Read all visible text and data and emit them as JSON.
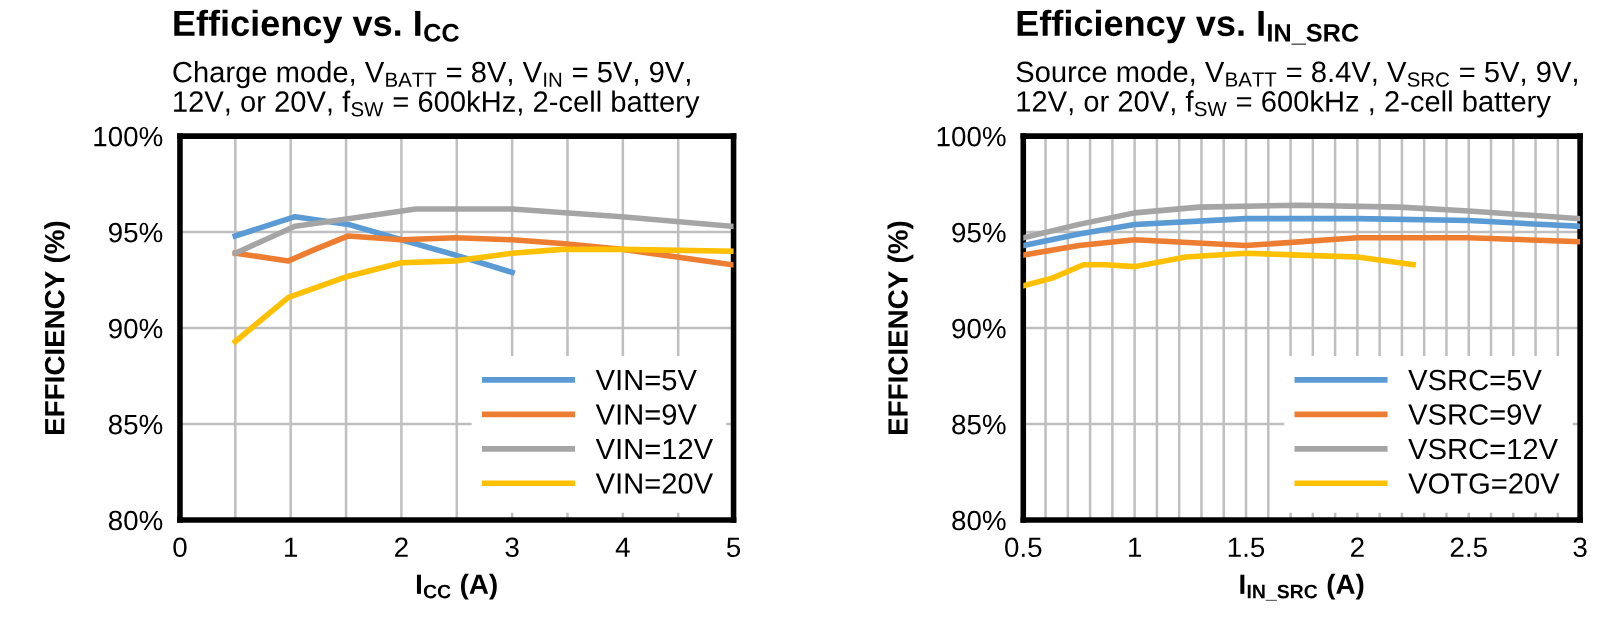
{
  "chart_data": [
    {
      "type": "line",
      "title": "Efficiency vs. I$_{CC}$",
      "subtitle": "Charge mode, V$_{BATT}$ = 8V, V$_{IN}$ = 5V, 9V,\n12V, or 20V, f$_{SW}$ = 600kHz, 2-cell battery",
      "xlabel": "I$_{CC}$ (A)",
      "ylabel": "EFFICIENCY (%)",
      "xlim": [
        0,
        5
      ],
      "xticks": [
        0,
        {
          "value": 0.5,
          "label": null
        },
        1,
        {
          "value": 1.5,
          "label": null
        },
        2,
        {
          "value": 2.5,
          "label": null
        },
        3,
        {
          "value": 3.5,
          "label": null
        },
        4,
        {
          "value": 4.5,
          "label": null
        },
        5
      ],
      "ylim": [
        80,
        100
      ],
      "yticks": [
        {
          "value": 80,
          "label": "80%"
        },
        {
          "value": 85,
          "label": "85%"
        },
        {
          "value": 90,
          "label": "90%"
        },
        {
          "value": 95,
          "label": "95%"
        },
        {
          "value": 100,
          "label": "100%"
        }
      ],
      "grid": true,
      "legend": "bottom right",
      "marker": "none",
      "line_style": "solid",
      "series": [
        {
          "name": "VIN=5V",
          "color": "#5b9bd5",
          "x": [
            0.5,
            1.04,
            1.52,
            2.0,
            2.49,
            3.0
          ],
          "values": [
            94.8,
            95.8,
            95.4,
            94.6,
            93.8,
            92.9
          ]
        },
        {
          "name": "VIN=9V",
          "color": "#ed7d31",
          "x": [
            0.5,
            0.98,
            1.22,
            1.52,
            2.0,
            2.49,
            3.0,
            3.45,
            3.99,
            4.99
          ],
          "values": [
            93.9,
            93.5,
            94.1,
            94.8,
            94.6,
            94.7,
            94.6,
            94.4,
            94.1,
            93.3
          ]
        },
        {
          "name": "VIN=12V",
          "color": "#a5a5a5",
          "x": [
            0.5,
            1.04,
            1.52,
            2.13,
            2.49,
            3.0,
            3.99,
            4.99
          ],
          "values": [
            93.9,
            95.3,
            95.7,
            96.2,
            96.2,
            96.2,
            95.8,
            95.3
          ]
        },
        {
          "name": "VIN=20V",
          "color": "#ffc000",
          "x": [
            0.5,
            0.98,
            1.52,
            2.0,
            2.49,
            3.0,
            3.45,
            3.99,
            4.99
          ],
          "values": [
            89.3,
            91.6,
            92.7,
            93.4,
            93.5,
            93.9,
            94.1,
            94.1,
            94.0
          ]
        }
      ]
    },
    {
      "type": "line",
      "title": "Efficiency vs. I$_{IN_SRC}$",
      "subtitle": "Source mode, V$_{BATT}$ = 8.4V, V$_{SRC}$ = 5V, 9V,\n12V, or 20V, f$_{SW}$ = 600kHz , 2-cell battery",
      "xlabel": "I$_{IN_SRC}$ (A)",
      "ylabel": "EFFICIENCY (%)",
      "xlim": [
        0.5,
        3
      ],
      "xticks": [
        0.5,
        {
          "value": 0.6,
          "label": null
        },
        {
          "value": 0.7,
          "label": null
        },
        {
          "value": 0.8,
          "label": null
        },
        {
          "value": 0.9,
          "label": null
        },
        1,
        {
          "value": 1.1,
          "label": null
        },
        {
          "value": 1.2,
          "label": null
        },
        {
          "value": 1.3,
          "label": null
        },
        {
          "value": 1.4,
          "label": null
        },
        1.5,
        {
          "value": 1.6,
          "label": null
        },
        {
          "value": 1.7,
          "label": null
        },
        {
          "value": 1.8,
          "label": null
        },
        {
          "value": 1.9,
          "label": null
        },
        2,
        {
          "value": 2.1,
          "label": null
        },
        {
          "value": 2.2,
          "label": null
        },
        {
          "value": 2.3,
          "label": null
        },
        {
          "value": 2.4,
          "label": null
        },
        2.5,
        {
          "value": 2.6,
          "label": null
        },
        {
          "value": 2.7,
          "label": null
        },
        {
          "value": 2.8,
          "label": null
        },
        {
          "value": 2.9,
          "label": null
        },
        3
      ],
      "ylim": [
        80,
        100
      ],
      "yticks": [
        {
          "value": 80,
          "label": "80%"
        },
        {
          "value": 85,
          "label": "85%"
        },
        {
          "value": 90,
          "label": "90%"
        },
        {
          "value": 95,
          "label": "95%"
        },
        {
          "value": 100,
          "label": "100%"
        }
      ],
      "grid": true,
      "legend": "bottom right",
      "marker": "none",
      "line_style": "solid",
      "series": [
        {
          "name": "VSRC=5V",
          "color": "#5b9bd5",
          "x": [
            0.5,
            0.75,
            1.0,
            1.5,
            2.0,
            2.5,
            3.0
          ],
          "values": [
            94.3,
            94.9,
            95.4,
            95.7,
            95.7,
            95.6,
            95.3
          ]
        },
        {
          "name": "VSRC=9V",
          "color": "#ed7d31",
          "x": [
            0.5,
            0.75,
            1.0,
            1.5,
            2.0,
            2.5,
            3.0
          ],
          "values": [
            93.8,
            94.3,
            94.6,
            94.3,
            94.7,
            94.7,
            94.5
          ]
        },
        {
          "name": "VSRC=12V",
          "color": "#a5a5a5",
          "x": [
            0.5,
            0.75,
            1.0,
            1.29,
            1.74,
            2.19,
            2.5,
            3.0
          ],
          "values": [
            94.7,
            95.4,
            96.0,
            96.3,
            96.4,
            96.3,
            96.1,
            95.7
          ]
        },
        {
          "name": "VOTG=20V",
          "color": "#ffc000",
          "x": [
            0.5,
            0.63,
            0.77,
            0.87,
            1.0,
            1.23,
            1.5,
            1.74,
            2.0,
            2.25
          ],
          "values": [
            92.2,
            92.6,
            93.3,
            93.3,
            93.2,
            93.7,
            93.9,
            93.8,
            93.7,
            93.3
          ]
        }
      ]
    }
  ]
}
